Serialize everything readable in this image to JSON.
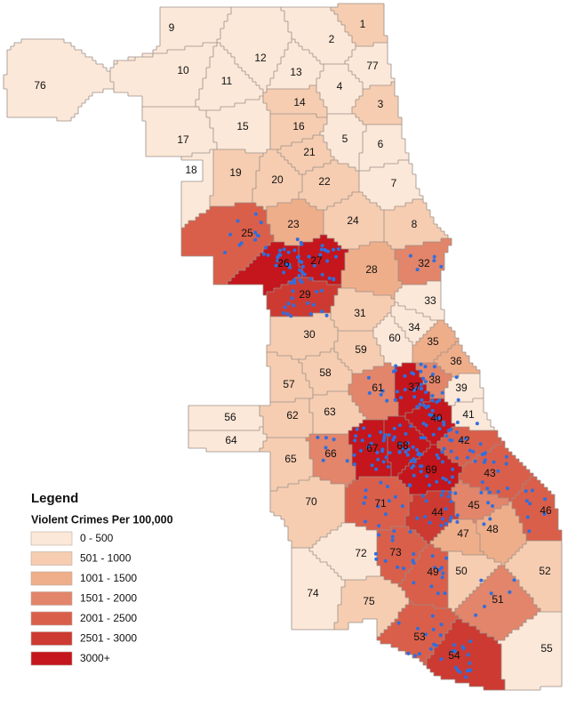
{
  "map": {
    "legend": {
      "title": "Legend",
      "subtitle": "Violent Crimes Per 100,000",
      "classes": [
        {
          "label": "0 - 500",
          "color": "#fce8d8"
        },
        {
          "label": "501 - 1000",
          "color": "#f6cdb1"
        },
        {
          "label": "1001 - 1500",
          "color": "#efae8a"
        },
        {
          "label": "1501 - 2000",
          "color": "#e2856a"
        },
        {
          "label": "2001 - 2500",
          "color": "#d95f4a"
        },
        {
          "label": "2501 - 3000",
          "color": "#cc3a32"
        },
        {
          "label": "3000+",
          "color": "#c4161c"
        }
      ]
    },
    "areas": [
      {
        "label": "1",
        "color": "#f6cdb1"
      },
      {
        "label": "2",
        "color": "#fce8d8"
      },
      {
        "label": "3",
        "color": "#f6cdb1"
      },
      {
        "label": "4",
        "color": "#fce8d8"
      },
      {
        "label": "5",
        "color": "#fce8d8"
      },
      {
        "label": "6",
        "color": "#fce8d8"
      },
      {
        "label": "7",
        "color": "#fce8d8"
      },
      {
        "label": "8",
        "color": "#f6cdb1"
      },
      {
        "label": "9",
        "color": "#fce8d8"
      },
      {
        "label": "10",
        "color": "#fce8d8"
      },
      {
        "label": "11",
        "color": "#fce8d8"
      },
      {
        "label": "12",
        "color": "#fce8d8"
      },
      {
        "label": "13",
        "color": "#fce8d8"
      },
      {
        "label": "14",
        "color": "#f6cdb1"
      },
      {
        "label": "15",
        "color": "#fce8d8"
      },
      {
        "label": "16",
        "color": "#f6cdb1"
      },
      {
        "label": "17",
        "color": "#fce8d8"
      },
      {
        "label": "18",
        "color": "#fce8d8"
      },
      {
        "label": "19",
        "color": "#f6cdb1"
      },
      {
        "label": "20",
        "color": "#f6cdb1"
      },
      {
        "label": "21",
        "color": "#f6cdb1"
      },
      {
        "label": "22",
        "color": "#f6cdb1"
      },
      {
        "label": "23",
        "color": "#efae8a"
      },
      {
        "label": "24",
        "color": "#f6cdb1"
      },
      {
        "label": "25",
        "color": "#d95f4a"
      },
      {
        "label": "26",
        "color": "#c4161c"
      },
      {
        "label": "27",
        "color": "#c4161c"
      },
      {
        "label": "28",
        "color": "#efae8a"
      },
      {
        "label": "29",
        "color": "#cc3a32"
      },
      {
        "label": "30",
        "color": "#f6cdb1"
      },
      {
        "label": "31",
        "color": "#f6cdb1"
      },
      {
        "label": "32",
        "color": "#e2856a"
      },
      {
        "label": "33",
        "color": "#fce8d8"
      },
      {
        "label": "34",
        "color": "#fce8d8"
      },
      {
        "label": "35",
        "color": "#efae8a"
      },
      {
        "label": "36",
        "color": "#efae8a"
      },
      {
        "label": "37",
        "color": "#c4161c"
      },
      {
        "label": "38",
        "color": "#e2856a"
      },
      {
        "label": "39",
        "color": "#fce8d8"
      },
      {
        "label": "40",
        "color": "#c4161c"
      },
      {
        "label": "41",
        "color": "#fce8d8"
      },
      {
        "label": "42",
        "color": "#d95f4a"
      },
      {
        "label": "43",
        "color": "#d95f4a"
      },
      {
        "label": "44",
        "color": "#cc3a32"
      },
      {
        "label": "45",
        "color": "#e2856a"
      },
      {
        "label": "46",
        "color": "#d95f4a"
      },
      {
        "label": "47",
        "color": "#efae8a"
      },
      {
        "label": "48",
        "color": "#efae8a"
      },
      {
        "label": "49",
        "color": "#d95f4a"
      },
      {
        "label": "50",
        "color": "#f6cdb1"
      },
      {
        "label": "51",
        "color": "#e2856a"
      },
      {
        "label": "52",
        "color": "#f6cdb1"
      },
      {
        "label": "53",
        "color": "#d95f4a"
      },
      {
        "label": "54",
        "color": "#cc3a32"
      },
      {
        "label": "55",
        "color": "#fce8d8"
      },
      {
        "label": "56",
        "color": "#fce8d8"
      },
      {
        "label": "57",
        "color": "#f6cdb1"
      },
      {
        "label": "58",
        "color": "#f6cdb1"
      },
      {
        "label": "59",
        "color": "#f6cdb1"
      },
      {
        "label": "60",
        "color": "#fce8d8"
      },
      {
        "label": "61",
        "color": "#e2856a"
      },
      {
        "label": "62",
        "color": "#f6cdb1"
      },
      {
        "label": "63",
        "color": "#f6cdb1"
      },
      {
        "label": "64",
        "color": "#fce8d8"
      },
      {
        "label": "65",
        "color": "#f6cdb1"
      },
      {
        "label": "66",
        "color": "#e2856a"
      },
      {
        "label": "67",
        "color": "#c4161c"
      },
      {
        "label": "68",
        "color": "#c4161c"
      },
      {
        "label": "69",
        "color": "#c4161c"
      },
      {
        "label": "70",
        "color": "#f6cdb1"
      },
      {
        "label": "71",
        "color": "#d95f4a"
      },
      {
        "label": "72",
        "color": "#fce8d8"
      },
      {
        "label": "73",
        "color": "#d95f4a"
      },
      {
        "label": "74",
        "color": "#fce8d8"
      },
      {
        "label": "75",
        "color": "#f6cdb1"
      },
      {
        "label": "76",
        "color": "#fce8d8"
      },
      {
        "label": "77",
        "color": "#fce8d8"
      }
    ]
  }
}
